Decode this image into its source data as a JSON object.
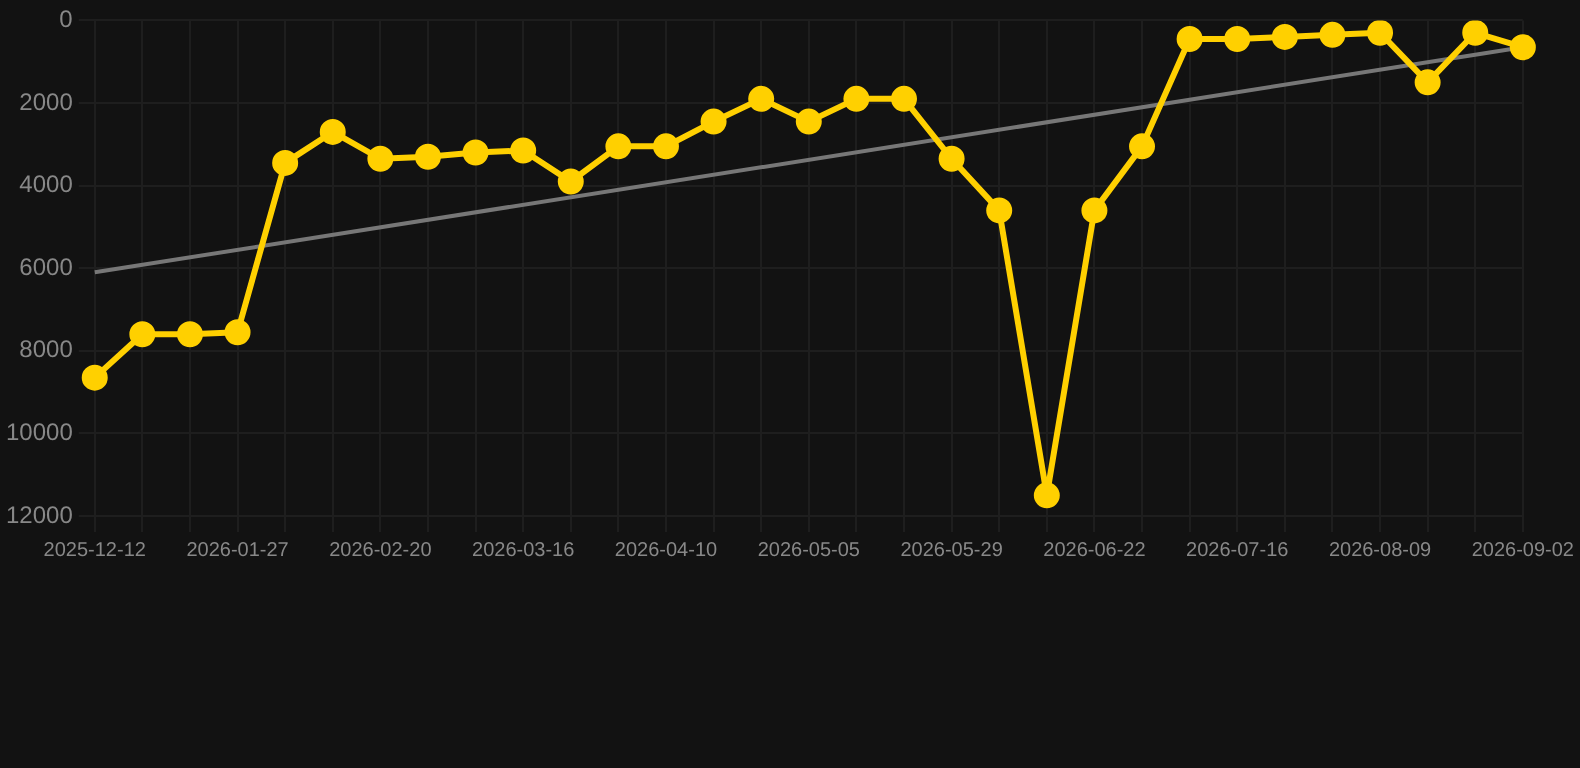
{
  "chart_data": {
    "type": "line",
    "categories": [
      "2025-12-12",
      null,
      null,
      "2026-01-27",
      null,
      null,
      "2026-02-20",
      null,
      null,
      "2026-03-16",
      null,
      null,
      "2026-04-10",
      null,
      null,
      "2026-05-05",
      null,
      null,
      "2026-05-29",
      null,
      null,
      "2026-06-22",
      null,
      null,
      "2026-07-16",
      null,
      null,
      "2026-08-09",
      null,
      null,
      "2026-09-02"
    ],
    "series": [
      {
        "color": "#ffd000",
        "marker": "circle",
        "values": [
          8650,
          7600,
          7600,
          7550,
          3450,
          2700,
          3350,
          3300,
          3200,
          3150,
          3900,
          3050,
          3050,
          2450,
          1900,
          2450,
          1900,
          1900,
          3350,
          4600,
          11500,
          4600,
          3050,
          450,
          450,
          400,
          350,
          300,
          1500,
          300,
          650
        ]
      },
      {
        "color": "#777777",
        "marker": "none",
        "values": [
          6100,
          null,
          null,
          null,
          null,
          null,
          null,
          null,
          null,
          null,
          null,
          null,
          null,
          null,
          null,
          null,
          null,
          null,
          null,
          null,
          null,
          null,
          null,
          null,
          null,
          null,
          null,
          null,
          null,
          null,
          650
        ]
      }
    ],
    "ylim": [
      12000,
      0
    ],
    "yticks": [
      0,
      2000,
      4000,
      6000,
      8000,
      10000,
      12000
    ],
    "grid": true,
    "legend": false
  }
}
